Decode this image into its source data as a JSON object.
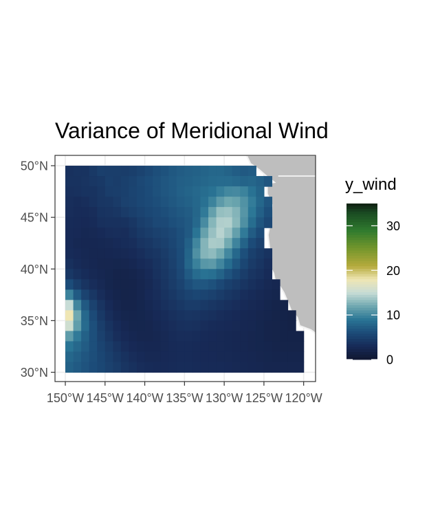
{
  "chart_data": {
    "type": "heatmap",
    "title": "Variance of Meridional Wind",
    "xlabel": "",
    "ylabel": "",
    "x_ticks": [
      {
        "value": -150,
        "label": "150°W"
      },
      {
        "value": -145,
        "label": "145°W"
      },
      {
        "value": -140,
        "label": "140°W"
      },
      {
        "value": -135,
        "label": "135°W"
      },
      {
        "value": -130,
        "label": "130°W"
      },
      {
        "value": -125,
        "label": "125°W"
      },
      {
        "value": -120,
        "label": "120°W"
      }
    ],
    "y_ticks": [
      {
        "value": 30,
        "label": "30°N"
      },
      {
        "value": 35,
        "label": "35°N"
      },
      {
        "value": 40,
        "label": "40°N"
      },
      {
        "value": 45,
        "label": "45°N"
      },
      {
        "value": 50,
        "label": "50°N"
      }
    ],
    "xlim": [
      -151.3,
      -118.5
    ],
    "ylim": [
      29.1,
      51.0
    ],
    "grid": true,
    "legend": {
      "title": "y_wind",
      "position": "right",
      "range": [
        0,
        35
      ],
      "ticks": [
        0,
        10,
        20,
        30
      ]
    },
    "colormap": [
      {
        "v": 0,
        "color": "#101730"
      },
      {
        "v": 3,
        "color": "#172a57"
      },
      {
        "v": 6,
        "color": "#1c4b78"
      },
      {
        "v": 9,
        "color": "#2a7595"
      },
      {
        "v": 12,
        "color": "#6fa8b0"
      },
      {
        "v": 15,
        "color": "#c7dcd6"
      },
      {
        "v": 18,
        "color": "#efe6b4"
      },
      {
        "v": 21,
        "color": "#b5aa3c"
      },
      {
        "v": 25,
        "color": "#73962c"
      },
      {
        "v": 29,
        "color": "#2f7a2e"
      },
      {
        "v": 33,
        "color": "#1a4a22"
      },
      {
        "v": 35,
        "color": "#0f1f12"
      }
    ],
    "data_extent": {
      "lon": [
        -150,
        -120
      ],
      "lat": [
        30,
        50
      ]
    },
    "grid_resolution_deg": 1,
    "values": [
      [
        3.6,
        3.8,
        3.8,
        4.4,
        4.9,
        4.8,
        4.8,
        4.7,
        4.9,
        5.3,
        5.7,
        6.2,
        6.5,
        6.9,
        7.2,
        7.4,
        7.6,
        7.8,
        8.0,
        8.0,
        7.7,
        7.3,
        7.0,
        7.2,
        6.8,
        6.3,
        5.5,
        4.6,
        3.4,
        2.5
      ],
      [
        3.7,
        3.7,
        3.9,
        4.2,
        4.4,
        4.9,
        4.7,
        5.0,
        5.3,
        5.7,
        6.1,
        6.4,
        6.8,
        7.1,
        7.4,
        7.6,
        7.8,
        8.0,
        8.2,
        8.3,
        8.3,
        8.1,
        7.8,
        7.9,
        7.5,
        6.8,
        5.9,
        4.8,
        3.7,
        2.7
      ],
      [
        3.5,
        3.6,
        3.8,
        3.8,
        4.2,
        4.7,
        4.8,
        5.0,
        5.4,
        5.6,
        6.0,
        6.4,
        6.8,
        7.1,
        7.5,
        7.8,
        8.1,
        8.4,
        8.8,
        9.5,
        10.1,
        10.2,
        9.8,
        8.8,
        7.8,
        6.8,
        5.8,
        4.9,
        3.9,
        2.9
      ],
      [
        3.4,
        3.2,
        3.4,
        3.7,
        4.1,
        4.2,
        4.5,
        5.1,
        5.3,
        5.6,
        5.9,
        6.2,
        6.6,
        6.9,
        7.3,
        7.6,
        8.0,
        8.7,
        9.8,
        11.2,
        12.0,
        11.7,
        10.7,
        9.4,
        8.0,
        6.8,
        5.7,
        4.9,
        3.9,
        3.0
      ],
      [
        3.3,
        3.1,
        3.1,
        3.3,
        3.8,
        3.9,
        4.1,
        4.5,
        4.9,
        5.3,
        5.6,
        5.9,
        6.2,
        6.6,
        6.9,
        7.2,
        7.9,
        9.3,
        11.5,
        13.3,
        13.5,
        12.7,
        10.9,
        9.1,
        7.5,
        6.3,
        5.4,
        4.6,
        3.8,
        3.0
      ],
      [
        3.1,
        3.0,
        2.9,
        3.1,
        3.5,
        3.6,
        3.6,
        3.7,
        4.2,
        4.8,
        5.2,
        5.7,
        5.8,
        6.3,
        6.6,
        7.0,
        8.1,
        10.3,
        12.8,
        14.2,
        14.3,
        12.9,
        10.6,
        8.4,
        6.8,
        5.7,
        4.7,
        4.0,
        3.4,
        2.8
      ],
      [
        3.0,
        2.9,
        2.7,
        2.8,
        3.0,
        3.3,
        3.4,
        3.3,
        3.8,
        4.4,
        4.7,
        5.1,
        5.4,
        5.7,
        6.3,
        7.0,
        8.9,
        11.6,
        13.4,
        14.5,
        13.5,
        11.5,
        9.3,
        7.2,
        6.0,
        5.0,
        4.2,
        3.6,
        3.0,
        2.5
      ],
      [
        3.0,
        2.7,
        2.6,
        2.6,
        2.7,
        2.8,
        3.0,
        3.2,
        3.4,
        3.9,
        4.2,
        4.6,
        5.0,
        5.5,
        6.2,
        7.5,
        10.0,
        12.7,
        14.0,
        13.9,
        12.1,
        9.9,
        7.7,
        6.0,
        5.1,
        4.3,
        3.7,
        3.1,
        2.6,
        2.2
      ],
      [
        3.1,
        2.9,
        2.7,
        2.5,
        2.5,
        2.6,
        2.7,
        2.8,
        3.0,
        3.4,
        3.8,
        4.1,
        4.6,
        5.3,
        6.1,
        7.8,
        10.6,
        12.7,
        13.1,
        12.1,
        10.1,
        8.1,
        6.3,
        5.0,
        4.4,
        3.8,
        3.2,
        2.7,
        2.3,
        1.9
      ],
      [
        3.5,
        3.1,
        2.8,
        2.6,
        2.4,
        2.4,
        2.3,
        2.4,
        2.6,
        3.0,
        3.3,
        3.8,
        4.4,
        5.1,
        6.0,
        7.9,
        9.7,
        11.0,
        11.2,
        10.0,
        8.4,
        6.9,
        5.5,
        4.5,
        4.0,
        3.4,
        2.9,
        2.5,
        2.1,
        1.8
      ],
      [
        4.3,
        3.6,
        3.2,
        2.8,
        2.5,
        2.3,
        2.1,
        2.1,
        2.2,
        2.5,
        3.0,
        3.6,
        4.2,
        4.8,
        5.7,
        7.1,
        8.3,
        8.8,
        8.6,
        7.7,
        6.6,
        5.6,
        4.7,
        4.0,
        3.6,
        3.1,
        2.7,
        2.3,
        1.9,
        1.7
      ],
      [
        6.1,
        4.8,
        3.9,
        3.3,
        2.8,
        2.3,
        2.1,
        2.0,
        2.1,
        2.4,
        2.8,
        3.4,
        4.0,
        4.6,
        5.3,
        6.2,
        6.8,
        6.8,
        6.4,
        5.7,
        5.0,
        4.5,
        4.0,
        3.5,
        3.2,
        2.8,
        2.5,
        2.1,
        1.8,
        1.6
      ],
      [
        9.8,
        7.1,
        5.3,
        4.2,
        3.3,
        2.6,
        2.2,
        2.0,
        2.1,
        2.4,
        2.9,
        3.3,
        3.8,
        4.3,
        4.8,
        5.3,
        5.5,
        5.4,
        5.1,
        4.6,
        4.2,
        3.8,
        3.4,
        3.1,
        2.8,
        2.5,
        2.3,
        2.0,
        1.8,
        1.6
      ],
      [
        15.0,
        10.0,
        7.0,
        5.2,
        3.9,
        3.0,
        2.4,
        2.1,
        2.1,
        2.3,
        2.7,
        3.1,
        3.5,
        3.9,
        4.3,
        4.6,
        4.6,
        4.4,
        4.1,
        3.8,
        3.5,
        3.3,
        3.0,
        2.8,
        2.6,
        2.3,
        2.1,
        1.9,
        1.8,
        1.7
      ],
      [
        18.0,
        12.0,
        8.1,
        5.9,
        4.4,
        3.4,
        2.7,
        2.3,
        2.2,
        2.3,
        2.5,
        2.9,
        3.2,
        3.5,
        3.8,
        4.0,
        3.9,
        3.7,
        3.5,
        3.3,
        3.1,
        2.9,
        2.7,
        2.6,
        2.4,
        2.2,
        2.0,
        1.9,
        1.8,
        1.8
      ],
      [
        15.5,
        11.4,
        8.3,
        6.3,
        4.8,
        3.8,
        3.1,
        2.6,
        2.3,
        2.3,
        2.4,
        2.7,
        3.0,
        3.3,
        3.5,
        3.6,
        3.5,
        3.3,
        3.1,
        3.0,
        2.9,
        2.8,
        2.6,
        2.5,
        2.3,
        2.1,
        2.0,
        1.9,
        1.8,
        1.8
      ],
      [
        11.3,
        9.3,
        7.6,
        6.3,
        5.1,
        4.2,
        3.4,
        2.9,
        2.6,
        2.4,
        2.4,
        2.5,
        2.8,
        3.1,
        3.3,
        3.3,
        3.2,
        3.0,
        2.9,
        2.8,
        2.7,
        2.6,
        2.5,
        2.4,
        2.3,
        2.1,
        2.0,
        1.9,
        1.9,
        1.9
      ],
      [
        9.0,
        8.1,
        7.2,
        6.3,
        5.4,
        4.6,
        3.9,
        3.3,
        2.9,
        2.7,
        2.6,
        2.6,
        2.8,
        3.0,
        3.1,
        3.1,
        3.0,
        2.9,
        2.8,
        2.8,
        2.7,
        2.6,
        2.5,
        2.4,
        2.3,
        2.2,
        2.1,
        2.0,
        2.0,
        2.0
      ],
      [
        8.0,
        7.4,
        6.8,
        6.2,
        5.5,
        4.9,
        4.3,
        3.7,
        3.3,
        3.0,
        2.8,
        2.8,
        2.9,
        3.0,
        3.1,
        3.1,
        3.0,
        2.9,
        2.9,
        2.8,
        2.8,
        2.7,
        2.6,
        2.5,
        2.4,
        2.3,
        2.2,
        2.2,
        2.2,
        2.2
      ],
      [
        7.6,
        7.1,
        6.6,
        6.1,
        5.6,
        5.1,
        4.6,
        4.0,
        3.6,
        3.3,
        3.1,
        3.0,
        3.0,
        3.1,
        3.2,
        3.2,
        3.1,
        3.0,
        3.0,
        3.0,
        2.9,
        2.8,
        2.7,
        2.6,
        2.5,
        2.4,
        2.4,
        2.4,
        2.4,
        2.4
      ]
    ],
    "land_color": "#bebebe",
    "panel_border_color": "#333333",
    "grid_line_color": "#ebebeb"
  }
}
